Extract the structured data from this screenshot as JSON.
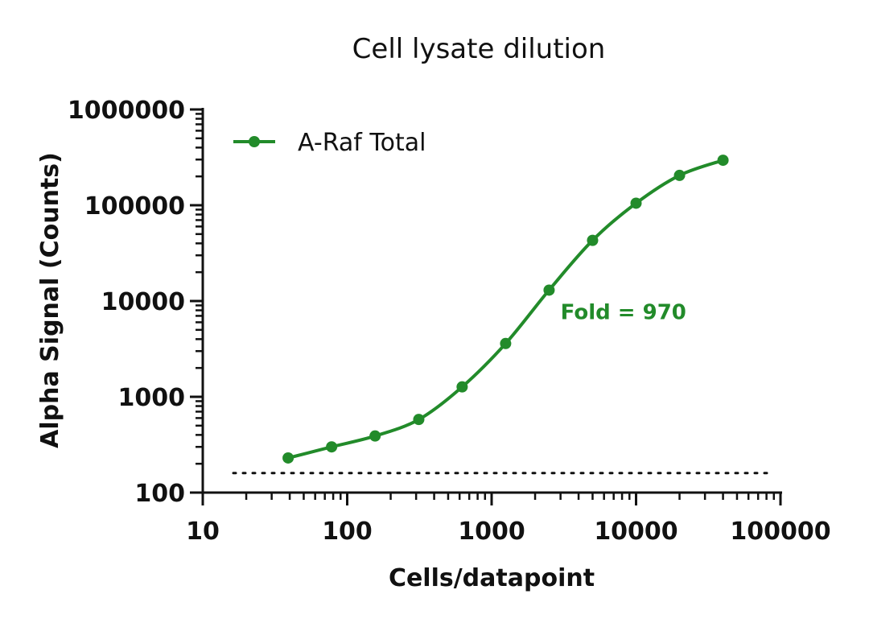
{
  "chart_data": {
    "type": "scatter",
    "title": "Cell lysate dilution",
    "xlabel": "Cells/datapoint",
    "ylabel": "Alpha Signal (Counts)",
    "x_scale": "log",
    "y_scale": "log",
    "xlim": [
      10,
      100000
    ],
    "ylim": [
      100,
      1000000
    ],
    "x_tick_labels": [
      "10",
      "100",
      "1000",
      "10000",
      "100000"
    ],
    "y_tick_labels": [
      "100",
      "1000",
      "10000",
      "100000",
      "1000000"
    ],
    "grid": false,
    "legend_position": "top-left",
    "series": [
      {
        "name": "A-Raf Total",
        "color": "#228B2A",
        "marker": "circle",
        "fit_line": "sigmoidal",
        "x": [
          39,
          78,
          156,
          313,
          625,
          1250,
          2500,
          5000,
          10000,
          20000,
          40000
        ],
        "y": [
          230,
          300,
          390,
          580,
          1270,
          3600,
          13000,
          43000,
          105000,
          205000,
          295000
        ]
      }
    ],
    "baseline": {
      "y": 160,
      "style": "dotted",
      "color": "#111111"
    },
    "annotations": [
      {
        "text": "Fold = 970",
        "x": 3000,
        "y": 6500,
        "color": "#228B2A"
      }
    ]
  }
}
